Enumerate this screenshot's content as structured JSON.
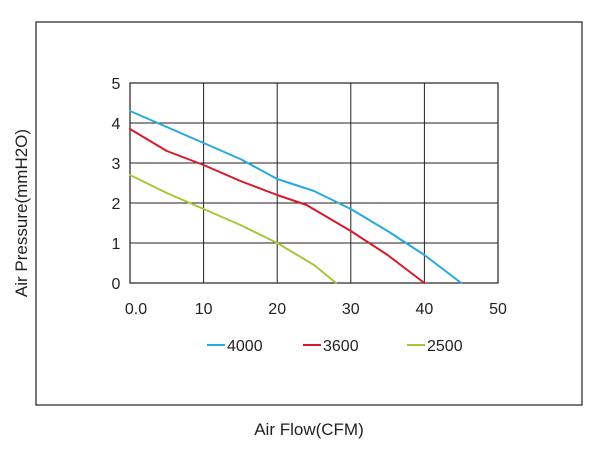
{
  "chart_data": {
    "type": "line",
    "title": "",
    "xlabel": "Air Flow(CFM)",
    "ylabel": "Air Pressure(mmH2O)",
    "xlim": [
      0,
      50
    ],
    "ylim": [
      0,
      5
    ],
    "x_ticks": [
      "0.0",
      "10",
      "20",
      "30",
      "40",
      "50"
    ],
    "y_ticks": [
      "0",
      "1",
      "2",
      "3",
      "4",
      "5"
    ],
    "grid": true,
    "legend_position": "bottom",
    "series": [
      {
        "name": "4000",
        "color": "#27a9e1",
        "points": [
          [
            0,
            4.3
          ],
          [
            5,
            3.9
          ],
          [
            10,
            3.5
          ],
          [
            15,
            3.1
          ],
          [
            20,
            2.6
          ],
          [
            25,
            2.3
          ],
          [
            30,
            1.85
          ],
          [
            35,
            1.3
          ],
          [
            40,
            0.7
          ],
          [
            45,
            0.0
          ]
        ]
      },
      {
        "name": "3600",
        "color": "#d7192a",
        "points": [
          [
            0,
            3.85
          ],
          [
            5,
            3.3
          ],
          [
            10,
            2.95
          ],
          [
            15,
            2.55
          ],
          [
            20,
            2.2
          ],
          [
            24,
            1.95
          ],
          [
            30,
            1.3
          ],
          [
            35,
            0.7
          ],
          [
            40,
            0.0
          ]
        ]
      },
      {
        "name": "2500",
        "color": "#a5c83a",
        "points": [
          [
            0,
            2.7
          ],
          [
            5,
            2.25
          ],
          [
            10,
            1.85
          ],
          [
            15,
            1.45
          ],
          [
            20,
            1.0
          ],
          [
            25,
            0.45
          ],
          [
            28,
            0.0
          ]
        ]
      }
    ]
  }
}
